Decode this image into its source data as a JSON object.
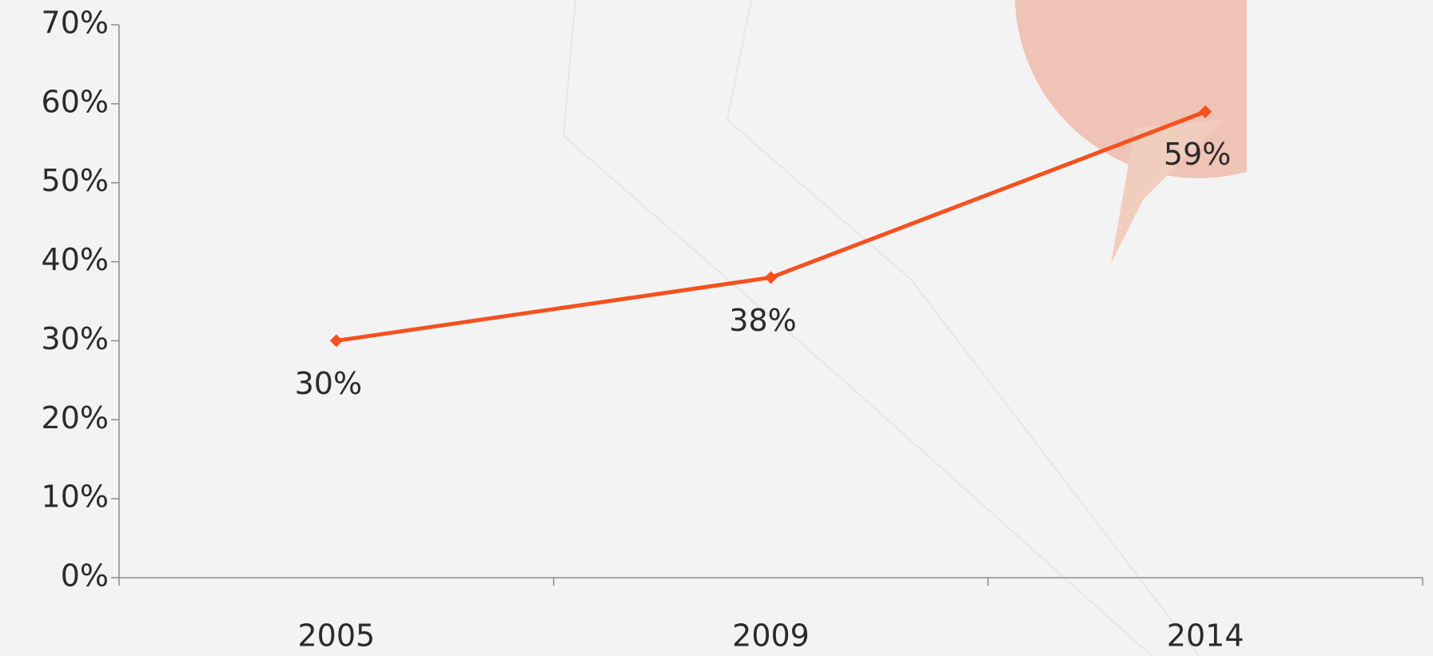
{
  "chart_data": {
    "type": "line",
    "categories": [
      "2005",
      "2009",
      "2014"
    ],
    "values": [
      30,
      38,
      59
    ],
    "value_labels": [
      "30%",
      "38%",
      "59%"
    ],
    "color": "#f4511e",
    "ylim": [
      0,
      70
    ],
    "yticks": [
      {
        "value": 0,
        "label": "0%"
      },
      {
        "value": 10,
        "label": "10%"
      },
      {
        "value": 20,
        "label": "20%"
      },
      {
        "value": 30,
        "label": "30%"
      },
      {
        "value": 40,
        "label": "40%"
      },
      {
        "value": 50,
        "label": "50%"
      },
      {
        "value": 60,
        "label": "60%"
      },
      {
        "value": 70,
        "label": "70%"
      }
    ]
  }
}
